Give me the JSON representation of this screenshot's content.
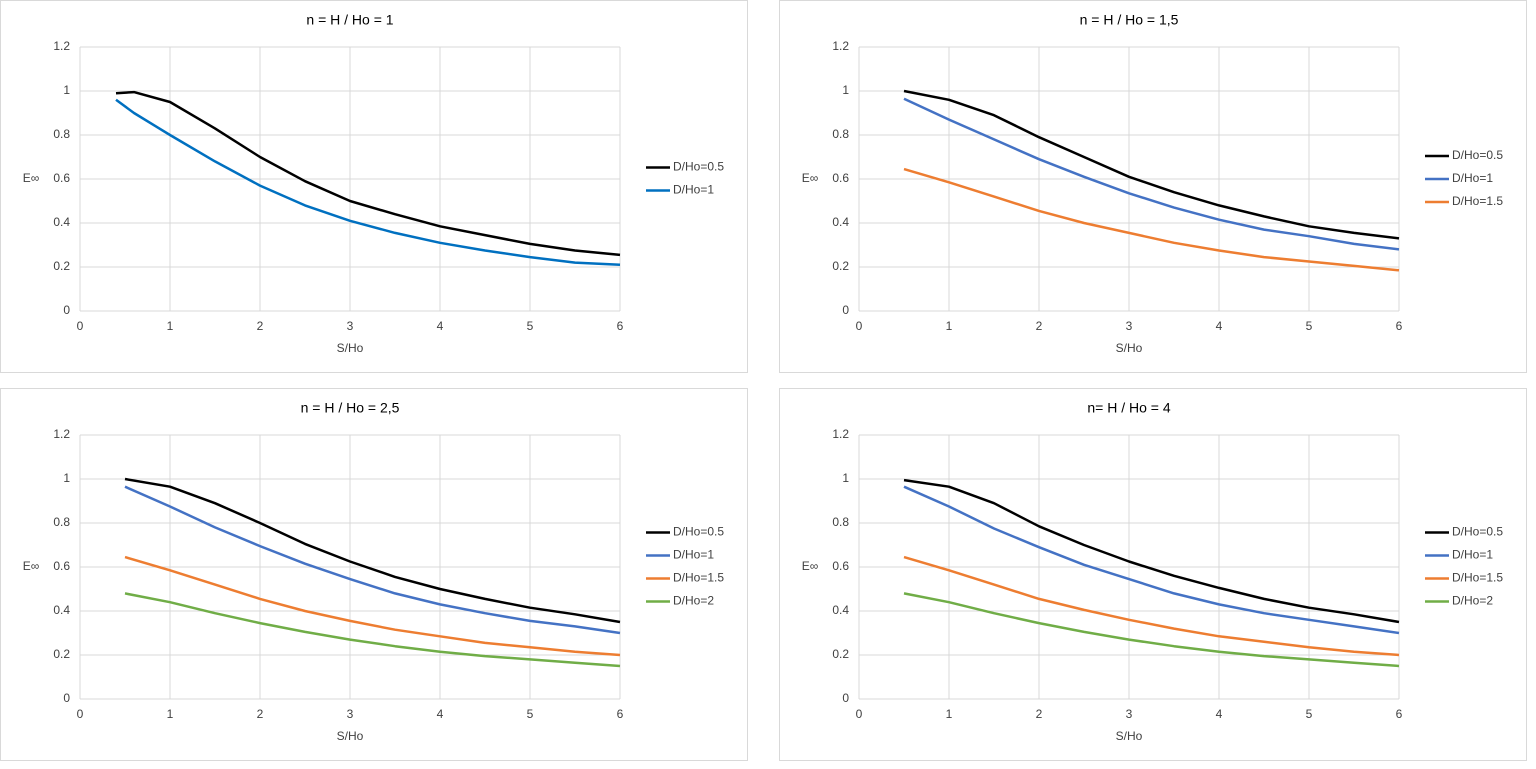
{
  "chart_data": [
    {
      "type": "line",
      "title": "n = H / Ho = 1",
      "x_label": "S/Ho",
      "y_label": "E∞",
      "x": [
        0.4,
        0.6,
        1,
        1.5,
        2,
        2.5,
        3,
        3.5,
        4,
        4.5,
        5,
        5.5,
        6
      ],
      "series": [
        {
          "name": "D/Ho=0.5",
          "color": "#000000",
          "values": [
            0.99,
            0.995,
            0.95,
            0.83,
            0.7,
            0.59,
            0.5,
            0.44,
            0.385,
            0.345,
            0.305,
            0.275,
            0.255
          ]
        },
        {
          "name": "D/Ho=1",
          "color": "#0070c0",
          "values": [
            0.96,
            0.9,
            0.8,
            0.68,
            0.57,
            0.48,
            0.41,
            0.355,
            0.31,
            0.275,
            0.245,
            0.22,
            0.21
          ]
        }
      ],
      "xlim": [
        0,
        6
      ],
      "ylim": [
        0,
        1.2
      ],
      "xticks": [
        0,
        1,
        2,
        3,
        4,
        5,
        6
      ],
      "yticks": [
        0,
        0.2,
        0.4,
        0.6,
        0.8,
        1,
        1.2
      ],
      "grid": true,
      "legend": "right"
    },
    {
      "type": "line",
      "title": "n = H / Ho = 1,5",
      "x_label": "S/Ho",
      "y_label": "E∞",
      "x": [
        0.5,
        1,
        1.5,
        2,
        2.5,
        3,
        3.5,
        4,
        4.5,
        5,
        5.5,
        6
      ],
      "series": [
        {
          "name": "D/Ho=0.5",
          "color": "#000000",
          "values": [
            1.0,
            0.96,
            0.89,
            0.79,
            0.7,
            0.61,
            0.54,
            0.48,
            0.43,
            0.385,
            0.355,
            0.33
          ]
        },
        {
          "name": "D/Ho=1",
          "color": "#4472c4",
          "values": [
            0.965,
            0.87,
            0.78,
            0.69,
            0.61,
            0.535,
            0.47,
            0.415,
            0.37,
            0.34,
            0.305,
            0.28
          ]
        },
        {
          "name": "D/Ho=1.5",
          "color": "#ed7d31",
          "values": [
            0.645,
            0.585,
            0.52,
            0.455,
            0.4,
            0.355,
            0.31,
            0.275,
            0.245,
            0.225,
            0.205,
            0.185
          ]
        }
      ],
      "xlim": [
        0,
        6
      ],
      "ylim": [
        0,
        1.2
      ],
      "xticks": [
        0,
        1,
        2,
        3,
        4,
        5,
        6
      ],
      "yticks": [
        0,
        0.2,
        0.4,
        0.6,
        0.8,
        1,
        1.2
      ],
      "grid": true,
      "legend": "right"
    },
    {
      "type": "line",
      "title": "n = H / Ho = 2,5",
      "x_label": "S/Ho",
      "y_label": "E∞",
      "x": [
        0.5,
        1,
        1.5,
        2,
        2.5,
        3,
        3.5,
        4,
        4.5,
        5,
        5.5,
        6
      ],
      "series": [
        {
          "name": "D/Ho=0.5",
          "color": "#000000",
          "values": [
            1.0,
            0.965,
            0.89,
            0.8,
            0.705,
            0.625,
            0.555,
            0.5,
            0.455,
            0.415,
            0.385,
            0.35
          ]
        },
        {
          "name": "D/Ho=1",
          "color": "#4472c4",
          "values": [
            0.965,
            0.875,
            0.78,
            0.695,
            0.615,
            0.545,
            0.48,
            0.43,
            0.39,
            0.355,
            0.33,
            0.3
          ]
        },
        {
          "name": "D/Ho=1.5",
          "color": "#ed7d31",
          "values": [
            0.645,
            0.585,
            0.52,
            0.455,
            0.4,
            0.355,
            0.315,
            0.285,
            0.255,
            0.235,
            0.215,
            0.2
          ]
        },
        {
          "name": "D/Ho=2",
          "color": "#70ad47",
          "values": [
            0.48,
            0.44,
            0.39,
            0.345,
            0.305,
            0.27,
            0.24,
            0.215,
            0.195,
            0.18,
            0.165,
            0.15
          ]
        }
      ],
      "xlim": [
        0,
        6
      ],
      "ylim": [
        0,
        1.2
      ],
      "xticks": [
        0,
        1,
        2,
        3,
        4,
        5,
        6
      ],
      "yticks": [
        0,
        0.2,
        0.4,
        0.6,
        0.8,
        1,
        1.2
      ],
      "grid": true,
      "legend": "right"
    },
    {
      "type": "line",
      "title": "n= H / Ho = 4",
      "x_label": "S/Ho",
      "y_label": "E∞",
      "x": [
        0.5,
        1,
        1.5,
        2,
        2.5,
        3,
        3.5,
        4,
        4.5,
        5,
        5.5,
        6
      ],
      "series": [
        {
          "name": "D/Ho=0.5",
          "color": "#000000",
          "values": [
            0.995,
            0.965,
            0.89,
            0.785,
            0.7,
            0.625,
            0.56,
            0.505,
            0.455,
            0.415,
            0.385,
            0.35
          ]
        },
        {
          "name": "D/Ho=1",
          "color": "#4472c4",
          "values": [
            0.965,
            0.875,
            0.775,
            0.69,
            0.61,
            0.545,
            0.48,
            0.43,
            0.39,
            0.36,
            0.33,
            0.3
          ]
        },
        {
          "name": "D/Ho=1.5",
          "color": "#ed7d31",
          "values": [
            0.645,
            0.585,
            0.52,
            0.455,
            0.405,
            0.36,
            0.32,
            0.285,
            0.26,
            0.235,
            0.215,
            0.2
          ]
        },
        {
          "name": "D/Ho=2",
          "color": "#70ad47",
          "values": [
            0.48,
            0.44,
            0.39,
            0.345,
            0.305,
            0.27,
            0.24,
            0.215,
            0.195,
            0.18,
            0.165,
            0.15
          ]
        }
      ],
      "xlim": [
        0,
        6
      ],
      "ylim": [
        0,
        1.2
      ],
      "xticks": [
        0,
        1,
        2,
        3,
        4,
        5,
        6
      ],
      "yticks": [
        0,
        0.2,
        0.4,
        0.6,
        0.8,
        1,
        1.2
      ],
      "grid": true,
      "legend": "right"
    }
  ]
}
